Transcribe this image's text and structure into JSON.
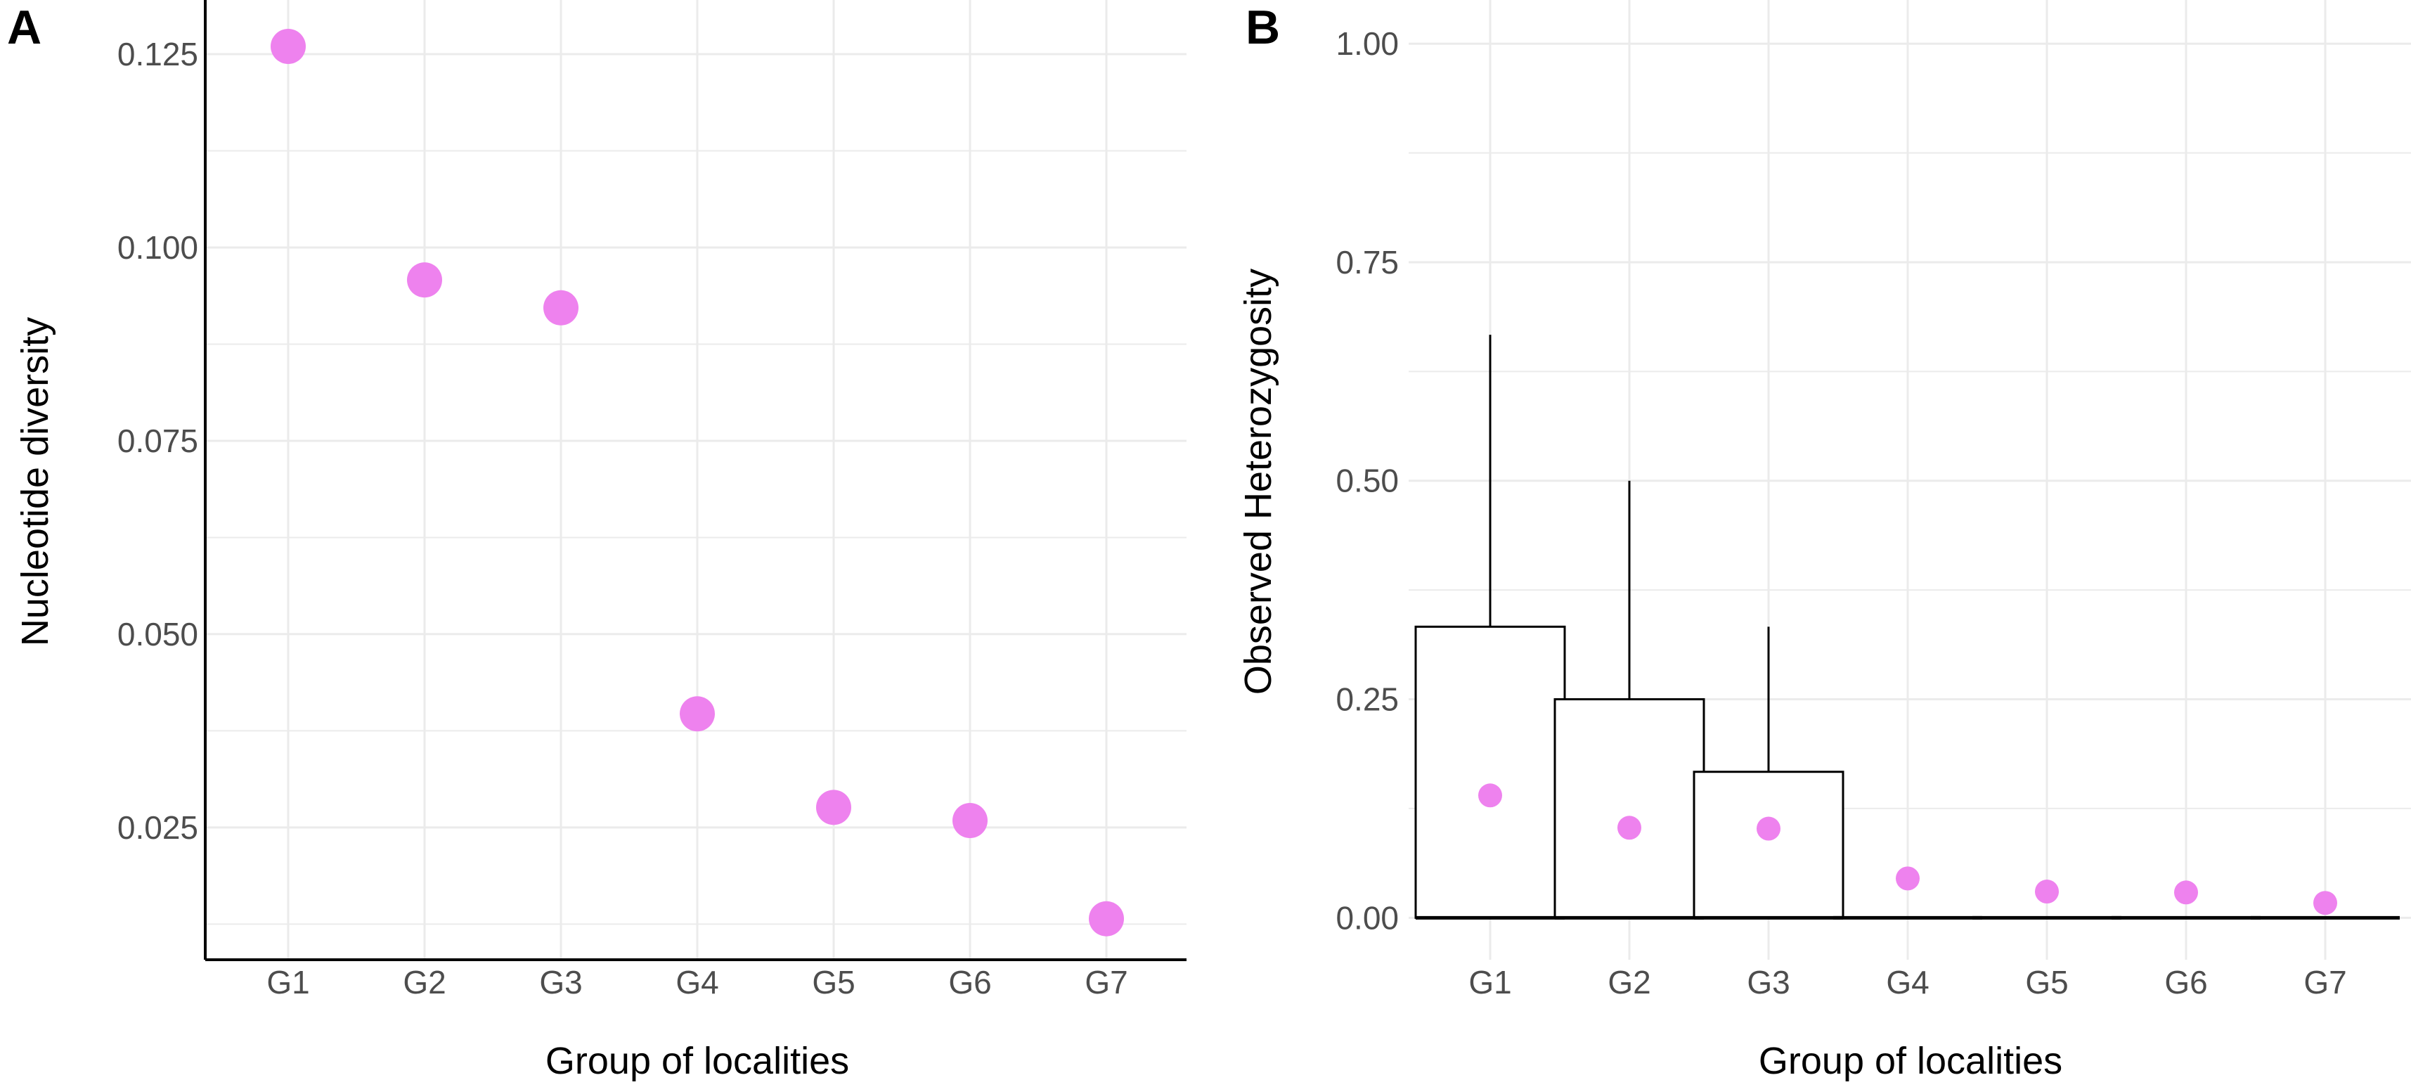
{
  "chart_data": [
    {
      "panel_label": "A",
      "type": "scatter",
      "title": "",
      "xlabel": "Group of localities",
      "ylabel": "Nucleotide diversity",
      "categories": [
        "G1",
        "G2",
        "G3",
        "G4",
        "G5",
        "G6",
        "G7"
      ],
      "values": [
        0.126,
        0.0958,
        0.0922,
        0.0397,
        0.0276,
        0.0259,
        0.0132
      ],
      "yticks": [
        0.025,
        0.05,
        0.075,
        0.1,
        0.125
      ],
      "ytick_labels": [
        "0.025",
        "0.050",
        "0.075",
        "0.100",
        "0.125"
      ],
      "ylim": [
        0.0079,
        0.132
      ],
      "grid": true,
      "point_color": "#EE82EE"
    },
    {
      "panel_label": "B",
      "type": "bar",
      "title": "",
      "xlabel": "Group of localities",
      "ylabel": "Observed Heterozygosity",
      "categories": [
        "G1",
        "G2",
        "G3",
        "G4",
        "G5",
        "G6",
        "G7"
      ],
      "series": [
        {
          "name": "box_lower",
          "values": [
            0,
            0,
            0,
            0,
            0,
            0,
            0
          ]
        },
        {
          "name": "box_upper",
          "values": [
            0.333,
            0.25,
            0.167,
            0,
            0,
            0,
            0
          ]
        },
        {
          "name": "whisker_max",
          "values": [
            0.667,
            0.5,
            0.333,
            0,
            0,
            0,
            0
          ]
        },
        {
          "name": "mean",
          "values": [
            0.14,
            0.103,
            0.102,
            0.045,
            0.03,
            0.029,
            0.017
          ]
        }
      ],
      "yticks": [
        0,
        0.25,
        0.5,
        0.75,
        1.0
      ],
      "ytick_labels": [
        "0.00",
        "0.25",
        "0.50",
        "0.75",
        "1.00"
      ],
      "ylim": [
        -0.048,
        1.05
      ],
      "grid": true,
      "point_color": "#EE82EE"
    }
  ]
}
